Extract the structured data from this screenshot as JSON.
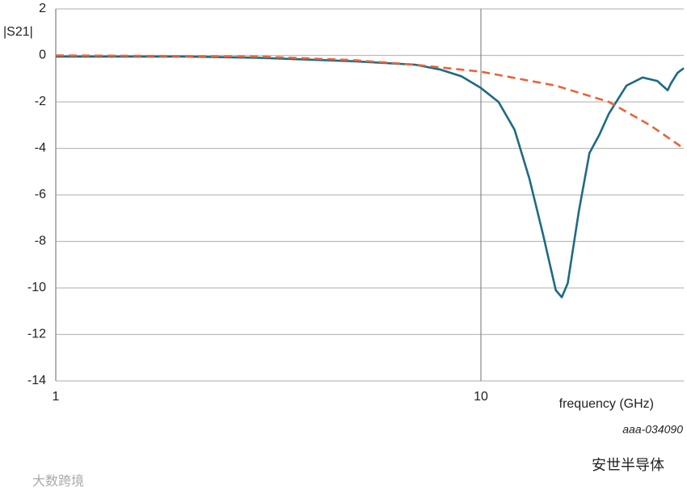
{
  "chart_data": {
    "type": "line",
    "y_label": "|S21|",
    "x_label": "frequency (GHz)",
    "annotation": "aaa-034090",
    "watermarks": [
      "安世半导体",
      "大数跨境"
    ],
    "xscale": "log",
    "grid": true,
    "xlim": [
      1,
      30
    ],
    "xticks": [
      1,
      10
    ],
    "ylim": [
      -14,
      2
    ],
    "yticks": [
      2,
      0,
      -2,
      -4,
      -6,
      -8,
      -10,
      -12,
      -14
    ],
    "series": [
      {
        "color": "#1d6b82",
        "dash": false,
        "x": [
          1,
          2,
          3,
          5,
          7,
          8,
          9,
          10,
          11,
          12,
          13,
          14,
          15,
          15.5,
          16,
          17,
          18,
          19,
          20,
          22,
          24,
          26,
          27.5,
          28,
          29,
          30
        ],
        "values": [
          -0.05,
          -0.05,
          -0.1,
          -0.25,
          -0.4,
          -0.6,
          -0.9,
          -1.4,
          -2.0,
          -3.2,
          -5.3,
          -7.7,
          -10.1,
          -10.4,
          -9.8,
          -6.7,
          -4.2,
          -3.4,
          -2.5,
          -1.3,
          -0.95,
          -1.1,
          -1.5,
          -1.2,
          -0.75,
          -0.55
        ]
      },
      {
        "color": "#e8643a",
        "dash": true,
        "x": [
          1,
          3,
          5,
          7,
          10,
          15,
          20,
          25,
          30
        ],
        "values": [
          0,
          -0.05,
          -0.2,
          -0.4,
          -0.7,
          -1.3,
          -2.0,
          -3.0,
          -4.0
        ]
      }
    ]
  }
}
